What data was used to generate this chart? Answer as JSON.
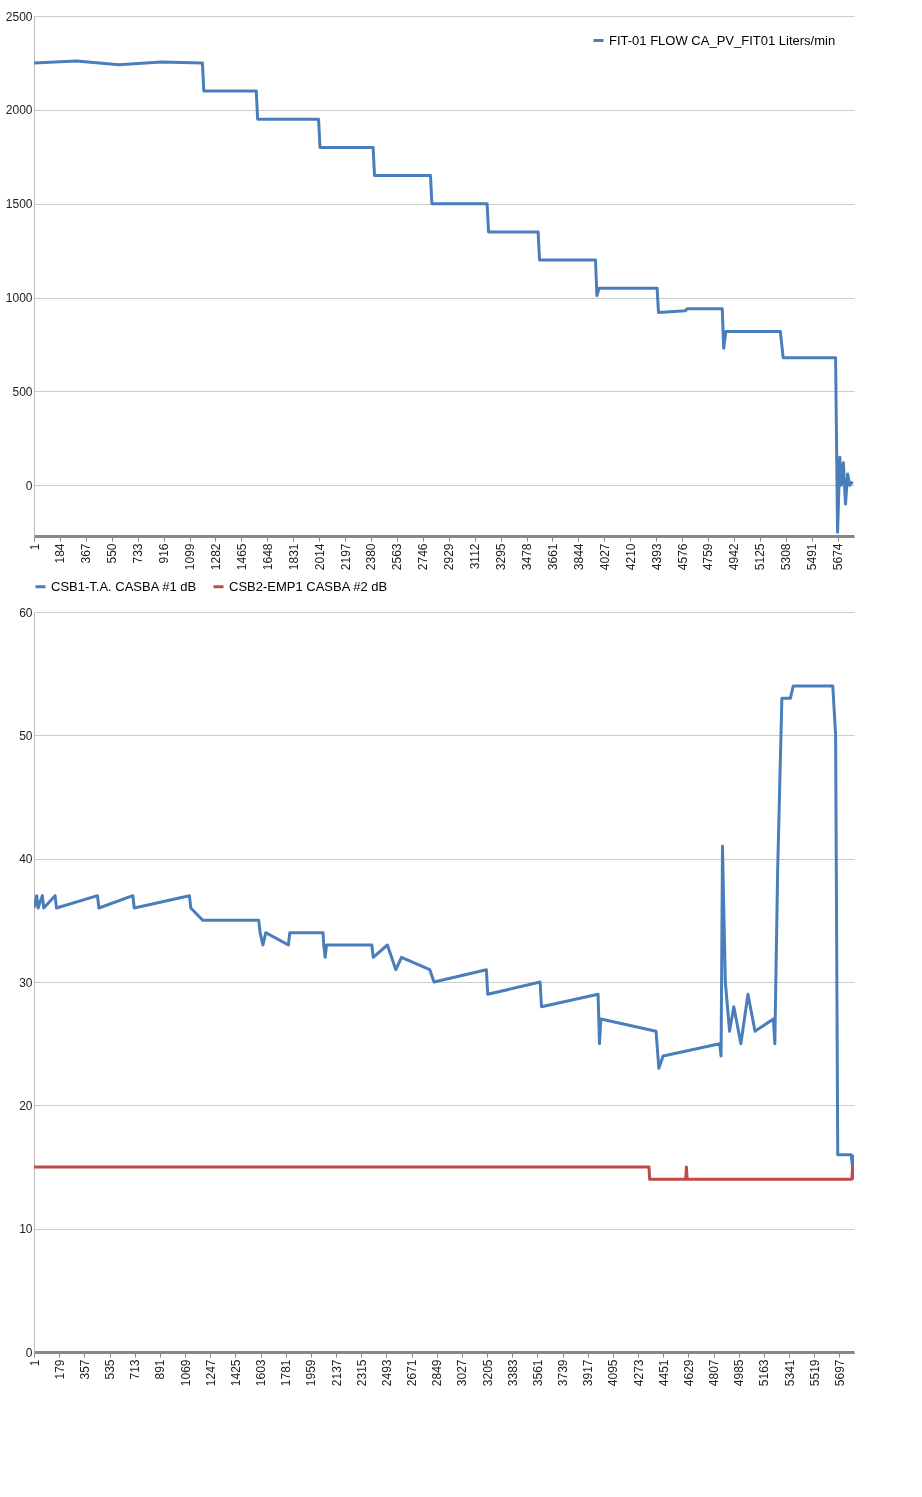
{
  "chart_data": [
    {
      "type": "line",
      "xlim": [
        1,
        5790
      ],
      "xticks": [
        1,
        184,
        367,
        550,
        733,
        916,
        1099,
        1282,
        1465,
        1648,
        1831,
        2014,
        2197,
        2380,
        2563,
        2746,
        2929,
        3112,
        3295,
        3478,
        3661,
        3844,
        4027,
        4210,
        4393,
        4576,
        4759,
        4942,
        5125,
        5308,
        5491,
        5674
      ],
      "ylim": [
        -270,
        2500
      ],
      "yticks": [
        0,
        500,
        1000,
        1500,
        2000,
        2500
      ],
      "grid": "y",
      "legend": "top right",
      "marker": "none",
      "line_style": "solid",
      "series": [
        {
          "name": "FIT-01 FLOW CA_PV_FIT01 Liters/min",
          "color": "#4a7ebb",
          "x": [
            1,
            300,
            600,
            900,
            1190,
            1200,
            1570,
            1580,
            2010,
            2020,
            2395,
            2405,
            2800,
            2810,
            3200,
            3210,
            3560,
            3570,
            3965,
            3975,
            3990,
            4400,
            4410,
            4600,
            4610,
            4860,
            4870,
            4885,
            5270,
            5290,
            5660,
            5674,
            5690,
            5700,
            5715,
            5730,
            5745,
            5760,
            5780
          ],
          "values": [
            2250,
            2260,
            2240,
            2255,
            2250,
            2100,
            2100,
            1950,
            1950,
            1800,
            1800,
            1650,
            1650,
            1500,
            1500,
            1350,
            1350,
            1200,
            1200,
            1010,
            1050,
            1050,
            920,
            930,
            940,
            940,
            730,
            820,
            820,
            680,
            680,
            -250,
            150,
            0,
            120,
            -100,
            60,
            0,
            20
          ]
        }
      ]
    },
    {
      "type": "line",
      "xlim": [
        1,
        5800
      ],
      "xticks": [
        1,
        179,
        357,
        535,
        713,
        891,
        1069,
        1247,
        1425,
        1603,
        1781,
        1959,
        2137,
        2315,
        2493,
        2671,
        2849,
        3027,
        3205,
        3383,
        3561,
        3739,
        3917,
        4095,
        4273,
        4451,
        4629,
        4807,
        4985,
        5163,
        5341,
        5519,
        5697
      ],
      "ylim": [
        0,
        60
      ],
      "yticks": [
        0,
        10,
        20,
        30,
        40,
        50,
        60
      ],
      "grid": "y",
      "legend": "top",
      "marker": "none",
      "line_style": "solid",
      "series": [
        {
          "name": "CSB1-T.A. CASBA #1 dB",
          "color": "#4a7ebb",
          "x": [
            1,
            20,
            30,
            60,
            70,
            150,
            160,
            450,
            460,
            700,
            710,
            1100,
            1110,
            1195,
            1590,
            1600,
            1620,
            1640,
            1800,
            1810,
            2045,
            2050,
            2060,
            2070,
            2390,
            2400,
            2500,
            2560,
            2600,
            2800,
            2830,
            3200,
            3210,
            3580,
            3590,
            3990,
            4000,
            4010,
            4400,
            4420,
            4450,
            4850,
            4860,
            4870,
            4890,
            4920,
            4950,
            5000,
            5050,
            5100,
            5230,
            5240,
            5260,
            5290,
            5350,
            5370,
            5650,
            5670,
            5685,
            5780,
            5790,
            5800
          ],
          "values": [
            36,
            37,
            36,
            37,
            36,
            37,
            36,
            37,
            36,
            37,
            36,
            37,
            36,
            35,
            35,
            34,
            33,
            34,
            33,
            34,
            34,
            33,
            32,
            33,
            33,
            32,
            33,
            31,
            32,
            31,
            30,
            31,
            29,
            30,
            28,
            29,
            25,
            27,
            26,
            23,
            24,
            25,
            24,
            41,
            30,
            26,
            28,
            25,
            29,
            26,
            27,
            25,
            39,
            53,
            53,
            54,
            54,
            50,
            16,
            16,
            15,
            16
          ]
        },
        {
          "name": "CSB2-EMP1 CASBA #2 dB",
          "color": "#be4b48",
          "x": [
            1,
            4350,
            4355,
            4610,
            4615,
            4620,
            5785,
            5790,
            5800
          ],
          "values": [
            15,
            15,
            14,
            14,
            15,
            14,
            14,
            15,
            14
          ]
        }
      ]
    }
  ]
}
